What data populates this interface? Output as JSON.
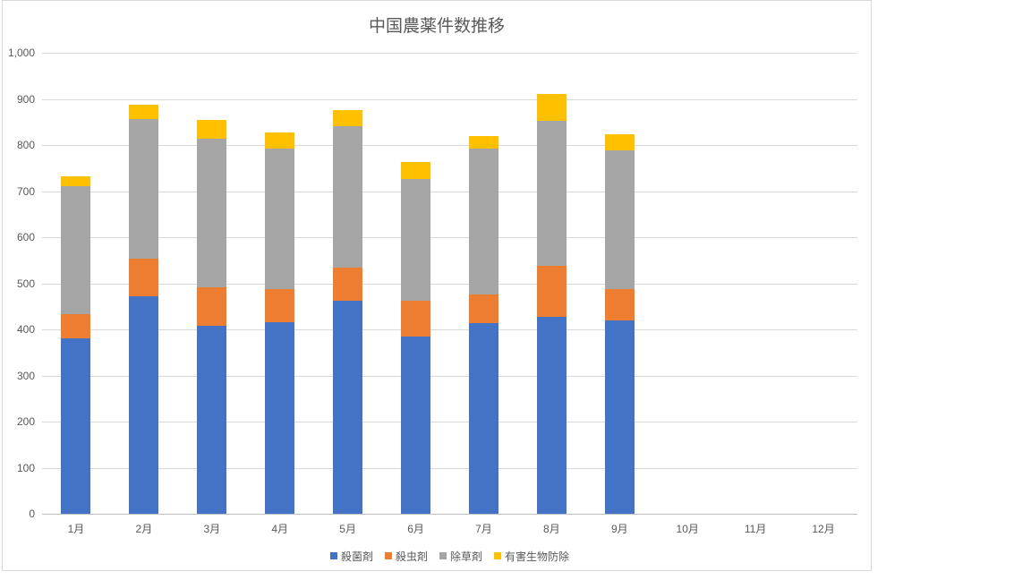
{
  "chart_data": {
    "type": "bar",
    "stacked": true,
    "title": "中国農薬件数推移",
    "categories": [
      "1月",
      "2月",
      "3月",
      "4月",
      "5月",
      "6月",
      "7月",
      "8月",
      "9月",
      "10月",
      "11月",
      "12月"
    ],
    "series": [
      {
        "name": "殺菌剤",
        "color": "#4472C4",
        "values": [
          381,
          472,
          407,
          415,
          462,
          384,
          414,
          428,
          420,
          null,
          null,
          null
        ]
      },
      {
        "name": "殺虫剤",
        "color": "#ED7D31",
        "values": [
          52,
          81,
          84,
          72,
          72,
          79,
          62,
          110,
          68,
          null,
          null,
          null
        ]
      },
      {
        "name": "除草剤",
        "color": "#A5A5A5",
        "values": [
          278,
          304,
          322,
          305,
          306,
          264,
          317,
          314,
          300,
          null,
          null,
          null
        ]
      },
      {
        "name": "有害生物防除",
        "color": "#FFC000",
        "values": [
          21,
          30,
          42,
          35,
          35,
          36,
          27,
          58,
          35,
          null,
          null,
          null
        ]
      }
    ],
    "totals": [
      732,
      887,
      855,
      827,
      875,
      763,
      820,
      910,
      823,
      null,
      null,
      null
    ],
    "ylim": [
      0,
      1000
    ],
    "yticks": [
      {
        "value": 0,
        "label": "0"
      },
      {
        "value": 100,
        "label": "100"
      },
      {
        "value": 200,
        "label": "200"
      },
      {
        "value": 300,
        "label": "300"
      },
      {
        "value": 400,
        "label": "400"
      },
      {
        "value": 500,
        "label": "500"
      },
      {
        "value": 600,
        "label": "600"
      },
      {
        "value": 700,
        "label": "700"
      },
      {
        "value": 800,
        "label": "800"
      },
      {
        "value": 900,
        "label": "900"
      },
      {
        "value": 1000,
        "label": "1,000"
      }
    ],
    "grid": true,
    "legend_position": "bottom"
  },
  "style_colors": {
    "title_text": "#595959",
    "axis_text": "#595959",
    "gridline": "#D9D9D9",
    "axis_line": "#BFBFBF",
    "frame_border": "#D9D9D9",
    "background": "#FFFFFF"
  }
}
